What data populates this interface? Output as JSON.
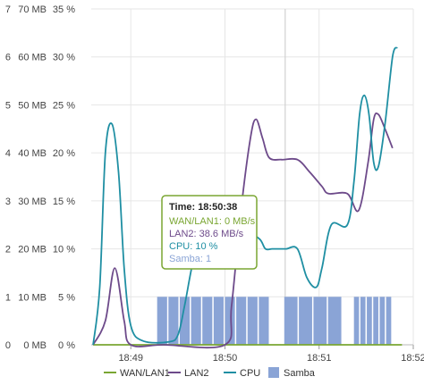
{
  "chart_data": {
    "type": "line",
    "left_axis": {
      "ticks": [
        "0 MB",
        "10 MB",
        "20 MB",
        "30 MB",
        "40 MB",
        "50 MB",
        "60 MB",
        "70 MB"
      ],
      "range": [
        0,
        70
      ]
    },
    "left_axis_2": {
      "ticks": [
        "0",
        "1",
        "2",
        "3",
        "4",
        "5",
        "6",
        "7"
      ],
      "range": [
        0,
        7
      ]
    },
    "right_axis": {
      "ticks": [
        "0 %",
        "5 %",
        "10 %",
        "15 %",
        "20 %",
        "25 %",
        "30 %",
        "35 %"
      ],
      "range": [
        0,
        35
      ]
    },
    "x_axis": {
      "ticks": [
        "18:49",
        "18:50",
        "18:51",
        "18:52"
      ],
      "tick_minutes": [
        0,
        1,
        2,
        3
      ],
      "range_minutes": [
        -0.42,
        3.0
      ]
    },
    "grid": true,
    "crosshair_minute": 1.64,
    "series": [
      {
        "name": "WAN/LAN1",
        "axis": "MB",
        "color": "#7aa632",
        "points": [
          [
            -0.4,
            0
          ],
          [
            2.88,
            0
          ]
        ]
      },
      {
        "name": "LAN2",
        "axis": "MB",
        "color": "#6d4a8a",
        "points": [
          [
            -0.4,
            0
          ],
          [
            -0.27,
            5
          ],
          [
            -0.17,
            16
          ],
          [
            -0.07,
            5
          ],
          [
            0.0,
            0
          ],
          [
            0.35,
            0
          ],
          [
            1.0,
            0
          ],
          [
            1.07,
            8
          ],
          [
            1.17,
            28
          ],
          [
            1.27,
            43
          ],
          [
            1.33,
            47
          ],
          [
            1.4,
            43
          ],
          [
            1.47,
            39
          ],
          [
            1.6,
            38.6
          ],
          [
            1.77,
            38.6
          ],
          [
            1.9,
            36
          ],
          [
            2.03,
            33
          ],
          [
            2.1,
            31.5
          ],
          [
            2.3,
            31.5
          ],
          [
            2.42,
            28
          ],
          [
            2.52,
            38
          ],
          [
            2.58,
            47
          ],
          [
            2.63,
            48
          ],
          [
            2.7,
            45
          ],
          [
            2.78,
            41
          ]
        ]
      },
      {
        "name": "CPU",
        "axis": "%",
        "color": "#1f8fa3",
        "points": [
          [
            -0.4,
            0
          ],
          [
            -0.33,
            6
          ],
          [
            -0.27,
            20
          ],
          [
            -0.2,
            23
          ],
          [
            -0.13,
            18
          ],
          [
            -0.07,
            8
          ],
          [
            0.0,
            2
          ],
          [
            0.13,
            0.4
          ],
          [
            0.4,
            0.3
          ],
          [
            0.5,
            1
          ],
          [
            0.57,
            4
          ],
          [
            0.67,
            9
          ],
          [
            0.77,
            11
          ],
          [
            0.87,
            13
          ],
          [
            0.95,
            13
          ],
          [
            1.05,
            12
          ],
          [
            1.13,
            11.5
          ],
          [
            1.25,
            11.6
          ],
          [
            1.37,
            11
          ],
          [
            1.43,
            10
          ],
          [
            1.5,
            10
          ],
          [
            1.57,
            10
          ],
          [
            1.65,
            10
          ],
          [
            1.77,
            10
          ],
          [
            1.87,
            7
          ],
          [
            1.97,
            6
          ],
          [
            2.03,
            8
          ],
          [
            2.13,
            12.5
          ],
          [
            2.3,
            12.5
          ],
          [
            2.37,
            17
          ],
          [
            2.43,
            24
          ],
          [
            2.48,
            26
          ],
          [
            2.53,
            24
          ],
          [
            2.58,
            19
          ],
          [
            2.63,
            18.6
          ],
          [
            2.7,
            23
          ],
          [
            2.78,
            30
          ],
          [
            2.83,
            31
          ]
        ]
      },
      {
        "name": "Samba",
        "axis": "count",
        "type": "bar",
        "color": "#8aa4d6",
        "value": 1,
        "segments": [
          [
            0.28,
            1.48
          ],
          [
            1.63,
            2.25
          ],
          [
            2.37,
            2.78
          ]
        ],
        "bar_count": [
          10,
          4,
          6
        ]
      }
    ]
  },
  "tooltip": {
    "time_label": "Time: 18:50:38",
    "wan_label": "WAN/LAN1: 0 MB/s",
    "lan2_label": "LAN2: 38.6 MB/s",
    "cpu_label": "CPU: 10 %",
    "samba_label": "Samba: 1",
    "border_color": "#7aa632"
  },
  "legend": [
    {
      "name": "WAN/LAN1",
      "color": "#7aa632",
      "marker": "line"
    },
    {
      "name": "LAN2",
      "color": "#6d4a8a",
      "marker": "line"
    },
    {
      "name": "CPU",
      "color": "#1f8fa3",
      "marker": "line"
    },
    {
      "name": "Samba",
      "color": "#8aa4d6",
      "marker": "square"
    }
  ]
}
